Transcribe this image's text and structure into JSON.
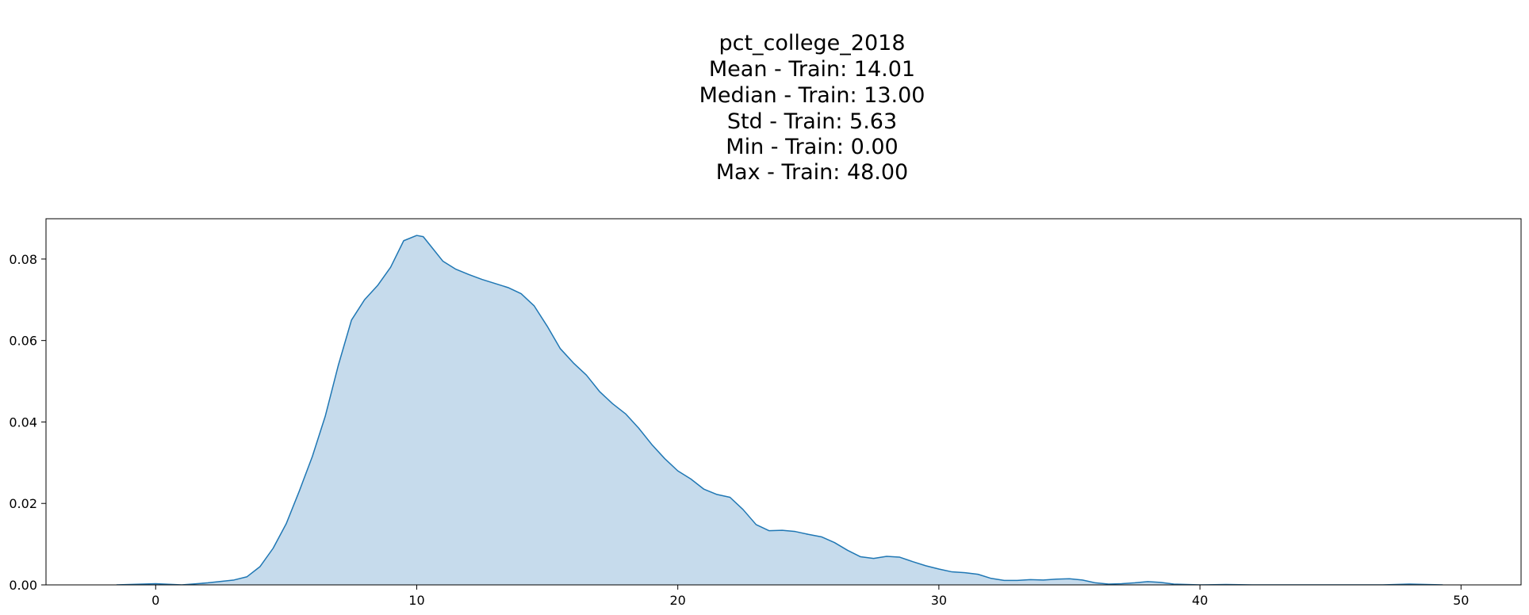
{
  "chart_data": {
    "type": "area",
    "title_lines": [
      "pct_college_2018",
      "Mean - Train: 14.01",
      "Median - Train: 13.00",
      "Std - Train: 5.63",
      "Min - Train: 0.00",
      "Max - Train: 48.00"
    ],
    "xlabel": "",
    "ylabel": "",
    "xlim": [
      -4.2,
      52.3
    ],
    "ylim": [
      0,
      0.0899
    ],
    "x_ticks": [
      0,
      10,
      20,
      30,
      40,
      50
    ],
    "x_tick_labels": [
      "0",
      "10",
      "20",
      "30",
      "40",
      "50"
    ],
    "y_ticks": [
      0,
      0.02,
      0.04,
      0.06,
      0.08
    ],
    "y_tick_labels": [
      "0.00",
      "0.02",
      "0.04",
      "0.06",
      "0.08"
    ],
    "grid": false,
    "series": [
      {
        "name": "Train",
        "line_color": "#1f77b4",
        "fill_color": "#c6dbec",
        "x": [
          -1.5,
          0,
          1,
          2,
          3,
          3.5,
          4,
          4.5,
          5,
          5.5,
          6,
          6.5,
          7,
          7.5,
          8,
          8.5,
          9,
          9.5,
          10,
          10.25,
          10.5,
          11,
          11.5,
          12,
          12.5,
          13,
          13.5,
          14,
          14.5,
          15,
          15.5,
          16,
          16.5,
          17,
          17.5,
          18,
          18.5,
          19,
          19.5,
          20,
          20.5,
          21,
          21.5,
          22,
          22.5,
          23,
          23.5,
          24,
          24.5,
          25,
          25.5,
          26,
          26.5,
          27,
          27.5,
          28,
          28.5,
          29,
          29.5,
          30,
          30.5,
          31,
          31.5,
          32,
          32.5,
          33,
          33.5,
          34,
          34.5,
          35,
          35.5,
          36,
          36.5,
          37,
          37.5,
          38,
          38.5,
          39,
          39.5,
          40,
          41,
          42,
          43,
          44,
          45,
          46,
          47,
          48,
          49.3
        ],
        "y": [
          0,
          0.0003,
          0,
          0.0005,
          0.0012,
          0.002,
          0.0045,
          0.009,
          0.015,
          0.023,
          0.0315,
          0.0415,
          0.054,
          0.065,
          0.07,
          0.0735,
          0.078,
          0.0845,
          0.0858,
          0.0855,
          0.0835,
          0.0795,
          0.0775,
          0.0762,
          0.075,
          0.074,
          0.073,
          0.0715,
          0.0685,
          0.0635,
          0.058,
          0.0545,
          0.0515,
          0.0475,
          0.0445,
          0.042,
          0.0385,
          0.0345,
          0.031,
          0.028,
          0.026,
          0.0235,
          0.0222,
          0.0215,
          0.0185,
          0.0148,
          0.0133,
          0.0134,
          0.0131,
          0.0124,
          0.0118,
          0.0104,
          0.0085,
          0.0069,
          0.0065,
          0.007,
          0.0068,
          0.0057,
          0.0047,
          0.0039,
          0.0032,
          0.003,
          0.0026,
          0.0016,
          0.0011,
          0.0011,
          0.0013,
          0.0012,
          0.0014,
          0.0015,
          0.0012,
          0.0005,
          0.0002,
          0.0003,
          0.0005,
          0.0008,
          0.0006,
          0.0002,
          0.0001,
          0,
          0.0001,
          0,
          0,
          0,
          0,
          0,
          0,
          0.0002,
          0
        ]
      }
    ]
  }
}
